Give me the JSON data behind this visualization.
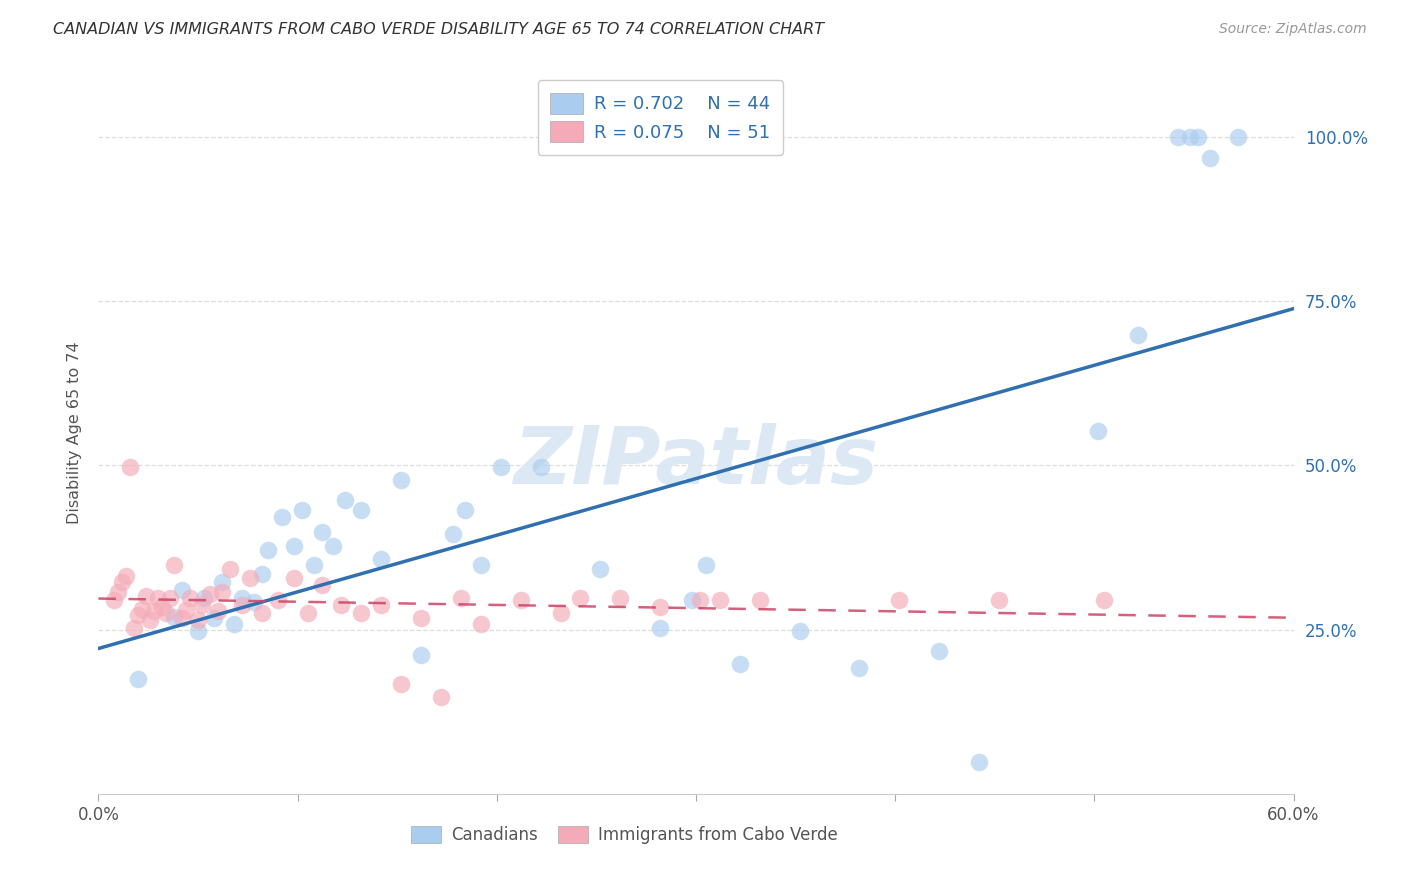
{
  "title": "CANADIAN VS IMMIGRANTS FROM CABO VERDE DISABILITY AGE 65 TO 74 CORRELATION CHART",
  "source": "Source: ZipAtlas.com",
  "ylabel": "Disability Age 65 to 74",
  "x_min": 0.0,
  "x_max": 0.6,
  "y_min": 0.0,
  "y_max": 1.1,
  "x_ticks": [
    0.0,
    0.1,
    0.2,
    0.3,
    0.4,
    0.5,
    0.6
  ],
  "x_tick_labels": [
    "0.0%",
    "",
    "",
    "",
    "",
    "",
    "60.0%"
  ],
  "y_tick_positions": [
    0.25,
    0.5,
    0.75,
    1.0
  ],
  "y_tick_labels_right": [
    "25.0%",
    "50.0%",
    "75.0%",
    "100.0%"
  ],
  "canadians_R": 0.702,
  "canadians_N": 44,
  "caboverde_R": 0.075,
  "caboverde_N": 51,
  "blue_scatter": "#aaccee",
  "pink_scatter": "#f4aab8",
  "blue_line": "#3070b0",
  "pink_line": "#cc4466",
  "legend_text_color": "#3070b0",
  "watermark_color": "#dce8f4",
  "canadians_x": [
    0.02,
    0.038,
    0.042,
    0.05,
    0.053,
    0.058,
    0.062,
    0.068,
    0.072,
    0.078,
    0.082,
    0.085,
    0.092,
    0.098,
    0.102,
    0.108,
    0.112,
    0.118,
    0.124,
    0.132,
    0.142,
    0.152,
    0.162,
    0.178,
    0.184,
    0.192,
    0.202,
    0.222,
    0.252,
    0.282,
    0.298,
    0.305,
    0.322,
    0.352,
    0.382,
    0.422,
    0.442,
    0.502,
    0.522,
    0.542,
    0.548,
    0.552,
    0.558,
    0.572
  ],
  "canadians_y": [
    0.175,
    0.27,
    0.31,
    0.248,
    0.298,
    0.268,
    0.322,
    0.258,
    0.298,
    0.292,
    0.335,
    0.372,
    0.422,
    0.378,
    0.432,
    0.348,
    0.398,
    0.378,
    0.448,
    0.432,
    0.358,
    0.478,
    0.212,
    0.395,
    0.432,
    0.348,
    0.498,
    0.498,
    0.342,
    0.252,
    0.295,
    0.348,
    0.198,
    0.248,
    0.192,
    0.218,
    0.048,
    0.552,
    0.698,
    1.0,
    1.0,
    1.0,
    0.968,
    1.0
  ],
  "caboverde_x": [
    0.008,
    0.01,
    0.012,
    0.014,
    0.016,
    0.018,
    0.02,
    0.022,
    0.024,
    0.026,
    0.028,
    0.03,
    0.032,
    0.034,
    0.036,
    0.038,
    0.042,
    0.044,
    0.046,
    0.05,
    0.052,
    0.056,
    0.06,
    0.062,
    0.066,
    0.072,
    0.076,
    0.082,
    0.09,
    0.098,
    0.105,
    0.112,
    0.122,
    0.132,
    0.142,
    0.152,
    0.162,
    0.172,
    0.182,
    0.192,
    0.212,
    0.232,
    0.242,
    0.262,
    0.282,
    0.302,
    0.312,
    0.332,
    0.402,
    0.452,
    0.505
  ],
  "caboverde_y": [
    0.295,
    0.308,
    0.322,
    0.332,
    0.498,
    0.252,
    0.272,
    0.282,
    0.302,
    0.265,
    0.278,
    0.298,
    0.285,
    0.275,
    0.298,
    0.348,
    0.268,
    0.28,
    0.298,
    0.265,
    0.288,
    0.305,
    0.278,
    0.308,
    0.342,
    0.288,
    0.328,
    0.275,
    0.295,
    0.328,
    0.275,
    0.318,
    0.288,
    0.275,
    0.288,
    0.168,
    0.268,
    0.148,
    0.298,
    0.258,
    0.295,
    0.275,
    0.298,
    0.298,
    0.285,
    0.295,
    0.295,
    0.295,
    0.295,
    0.295,
    0.295
  ]
}
